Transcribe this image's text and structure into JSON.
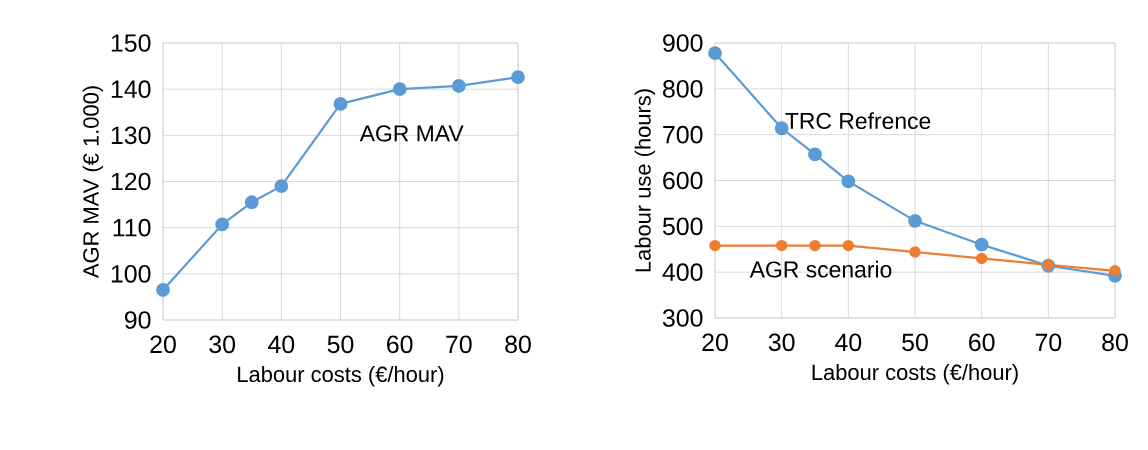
{
  "chart_data": [
    {
      "type": "line",
      "xlabel": "Labour costs (€/hour)",
      "ylabel": "AGR MAV (€ 1.000)",
      "x": [
        20,
        30,
        35,
        40,
        50,
        60,
        70,
        80
      ],
      "xlim": [
        20,
        80
      ],
      "xticks": [
        20,
        30,
        40,
        50,
        60,
        70,
        80
      ],
      "ylim": [
        90,
        150
      ],
      "yticks": [
        90,
        100,
        110,
        120,
        130,
        140,
        150
      ],
      "grid": true,
      "marker": "circle",
      "series": [
        {
          "name": "AGR MAV",
          "color": "#5b9bd5",
          "values": [
            96.5,
            110.7,
            115.5,
            119,
            136.8,
            140,
            140.7,
            142.6
          ]
        }
      ]
    },
    {
      "type": "line",
      "xlabel": "Labour costs (€/hour)",
      "ylabel": "Labour use (hours)",
      "x": [
        20,
        30,
        35,
        40,
        50,
        60,
        70,
        80
      ],
      "xlim": [
        20,
        80
      ],
      "xticks": [
        20,
        30,
        40,
        50,
        60,
        70,
        80
      ],
      "ylim": [
        300,
        900
      ],
      "yticks": [
        300,
        400,
        500,
        600,
        700,
        800,
        900
      ],
      "grid": true,
      "marker": "circle",
      "series": [
        {
          "name": "TRC Refrence",
          "color": "#5b9bd5",
          "values": [
            878,
            714,
            657,
            598,
            512,
            460,
            414,
            392
          ]
        },
        {
          "name": "AGR scenario",
          "color": "#ed7d31",
          "values": [
            458,
            458,
            458,
            458,
            444,
            430,
            416,
            403
          ]
        }
      ]
    }
  ]
}
